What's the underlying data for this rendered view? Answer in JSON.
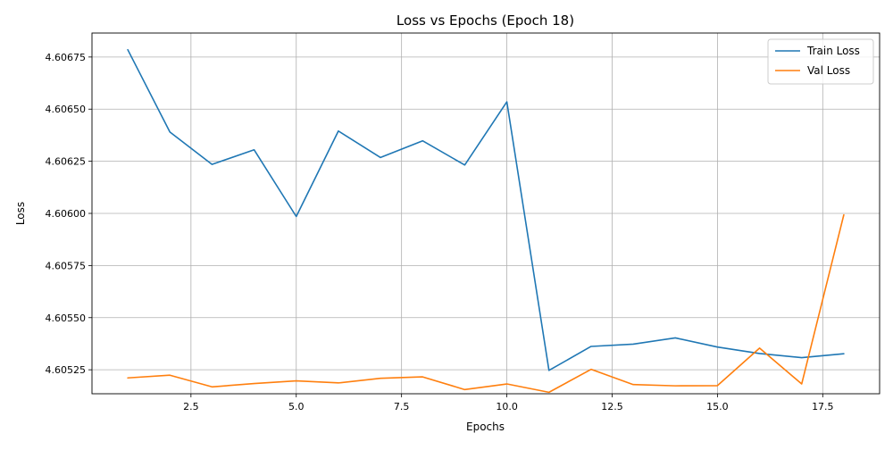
{
  "chart_data": {
    "type": "line",
    "title": "Loss vs Epochs (Epoch 18)",
    "xlabel": "Epochs",
    "ylabel": "Loss",
    "xlim": [
      0.15,
      18.85
    ],
    "ylim": [
      4.605135,
      4.606865
    ],
    "xticks": [
      2.5,
      5.0,
      7.5,
      10.0,
      12.5,
      15.0,
      17.5
    ],
    "xtick_labels": [
      "2.5",
      "5.0",
      "7.5",
      "10.0",
      "12.5",
      "15.0",
      "17.5"
    ],
    "yticks": [
      4.60525,
      4.6055,
      4.60575,
      4.606,
      4.60625,
      4.6065,
      4.60675
    ],
    "ytick_labels": [
      "4.60525",
      "4.60550",
      "4.60575",
      "4.60600",
      "4.60625",
      "4.60650",
      "4.60675"
    ],
    "grid": true,
    "legend_position": "top-right",
    "x": [
      1,
      2,
      3,
      4,
      5,
      6,
      7,
      8,
      9,
      10,
      11,
      12,
      13,
      14,
      15,
      16,
      17,
      18
    ],
    "series": [
      {
        "name": "Train Loss",
        "color": "#1f77b4",
        "values": [
          4.606785,
          4.60639,
          4.606235,
          4.606305,
          4.605985,
          4.606395,
          4.606268,
          4.606348,
          4.606232,
          4.606535,
          4.605247,
          4.605362,
          4.605373,
          4.605403,
          4.605359,
          4.605328,
          4.605308,
          4.605327
        ]
      },
      {
        "name": "Val Loss",
        "color": "#ff7f0e",
        "values": [
          4.605211,
          4.605224,
          4.605168,
          4.605184,
          4.605197,
          4.605187,
          4.605209,
          4.605216,
          4.605155,
          4.605182,
          4.605142,
          4.605252,
          4.605179,
          4.605173,
          4.605174,
          4.605354,
          4.605182,
          4.605993
        ]
      }
    ]
  }
}
